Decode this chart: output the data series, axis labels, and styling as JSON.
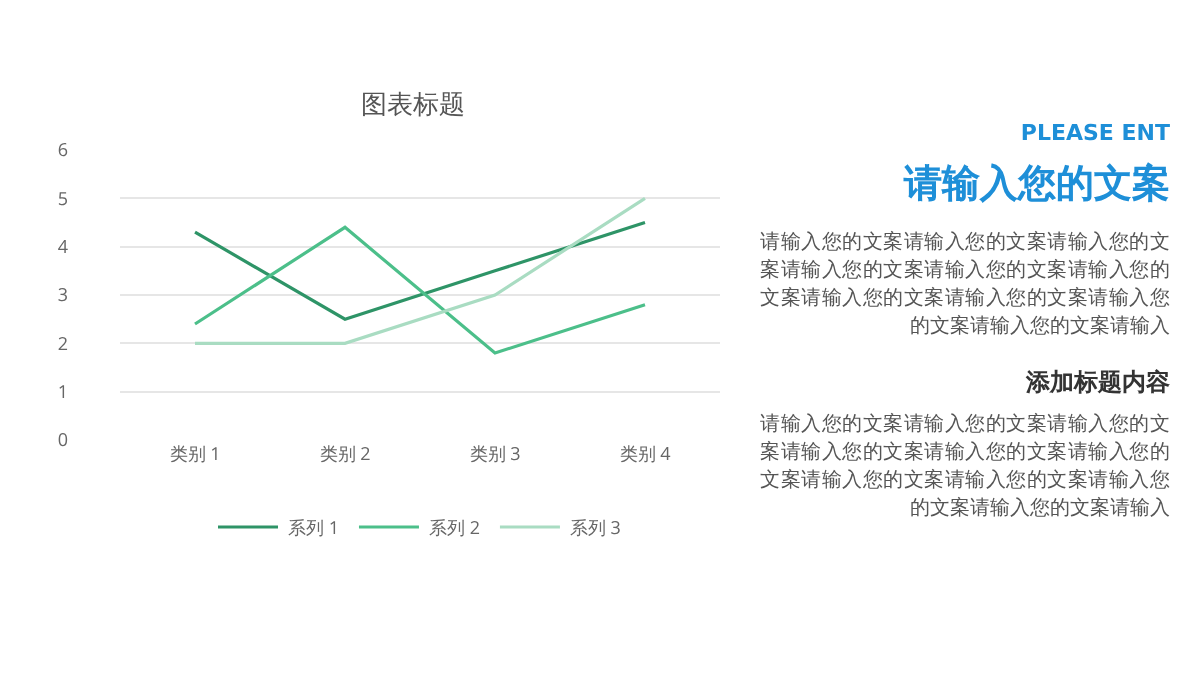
{
  "chart_data": [
    {
      "type": "line",
      "title": "图表标题",
      "categories": [
        "类别 1",
        "类别 2",
        "类别 3",
        "类别 4"
      ],
      "series": [
        {
          "name": "系列 1",
          "color": "#2e9467",
          "values": [
            4.3,
            2.5,
            3.5,
            4.5
          ]
        },
        {
          "name": "系列 2",
          "color": "#4cbf8a",
          "values": [
            2.4,
            4.4,
            1.8,
            2.8
          ]
        },
        {
          "name": "系列 3",
          "color": "#a9dcc2",
          "values": [
            2,
            2,
            3,
            5
          ]
        }
      ],
      "ylim": [
        0,
        6
      ],
      "yticks": [
        0,
        1,
        2,
        3,
        4,
        5,
        6
      ],
      "grid": "y",
      "legend": "bottom",
      "line_style": "solid"
    },
    {
      "type": "other",
      "title": "PLEASE ENT",
      "subtitle": "请输入您的文案",
      "annotations": [
        "请输入您的文案请输入您的文案请输入您的文案请输入您的文案请输入您的文案请输入您的文案请输入您的文案请输入您的文案请输入您的文案请输入您的文案请输入",
        "添加标题内容",
        "请输入您的文案请输入您的文案请输入您的文案请输入您的文案请输入您的文案请输入您的文案请输入您的文案请输入您的文案请输入您的文案请输入您的文案请输入"
      ]
    }
  ]
}
